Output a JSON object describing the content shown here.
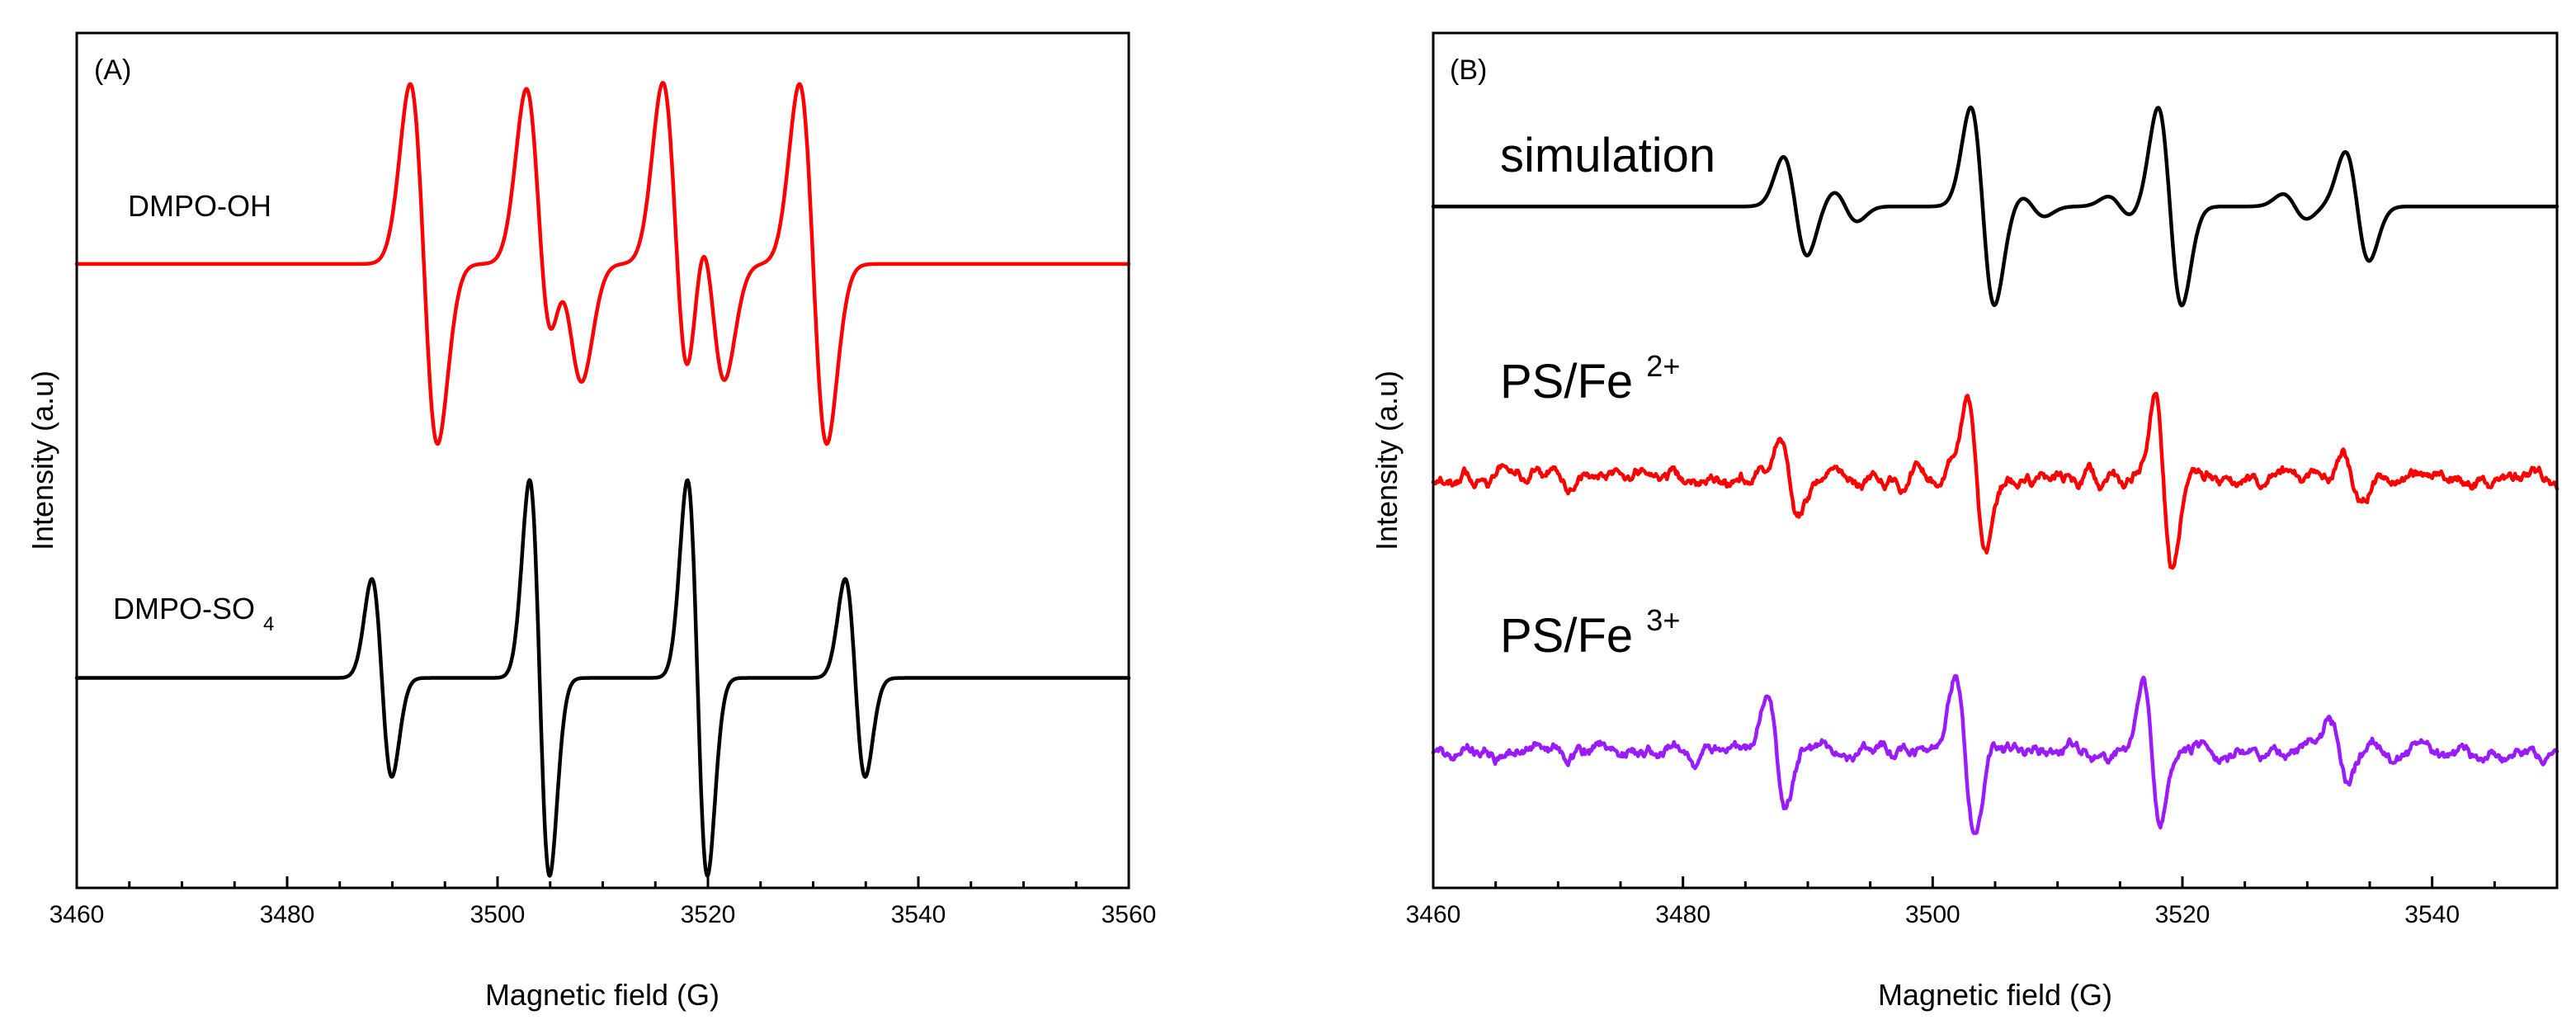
{
  "figure": {
    "colors": {
      "axis": "#000000",
      "red": "#ff0000",
      "black": "#000000",
      "purple": "#9b1bff"
    }
  },
  "chart_data": [
    {
      "type": "line",
      "panel_label": "(A)",
      "xlabel": "Magnetic field (G)",
      "ylabel": "Intensity (a.u)",
      "xlim": [
        3460,
        3560
      ],
      "xticks": [
        3460,
        3480,
        3500,
        3520,
        3540,
        3560
      ],
      "minor_step": 5,
      "ylim": [
        -1.7,
        1.15
      ],
      "grid": false,
      "series": [
        {
          "name": "DMPO-OH",
          "label_main": "DMPO-OH",
          "label_sub": "",
          "color": "#ff0000",
          "baseline": 0.38,
          "width": 1.3,
          "lines": [
            {
              "center": 3493.0,
              "amp": 0.6
            },
            {
              "center": 3504.0,
              "amp": 0.57
            },
            {
              "center": 3506.8,
              "amp": 0.37
            },
            {
              "center": 3517.0,
              "amp": 0.6
            },
            {
              "center": 3520.3,
              "amp": 0.38
            },
            {
              "center": 3530.0,
              "amp": 0.6
            }
          ]
        },
        {
          "name": "DMPO-SO4",
          "label_main": "DMPO-SO",
          "label_sub": "4",
          "color": "#000000",
          "baseline": -1.0,
          "width": 0.95,
          "lines": [
            {
              "center": 3489.0,
              "amp": 0.33
            },
            {
              "center": 3504.0,
              "amp": 0.66
            },
            {
              "center": 3519.0,
              "amp": 0.66
            },
            {
              "center": 3534.0,
              "amp": 0.33
            }
          ]
        }
      ]
    },
    {
      "type": "line",
      "panel_label": "(B)",
      "xlabel": "Magnetic field (G)",
      "ylabel": "Intensity (a.u)",
      "xlim": [
        3460,
        3550
      ],
      "xticks": [
        3460,
        3480,
        3500,
        3520,
        3540
      ],
      "minor_step": 5,
      "ylim": [
        -2.2,
        1.25
      ],
      "grid": false,
      "series": [
        {
          "name": "simulation",
          "label_main": "simulation",
          "label_sup": "",
          "color": "#000000",
          "baseline": 0.55,
          "width": 0.95,
          "noise": 0,
          "lines": [
            {
              "center": 3489.0,
              "amp": 0.2
            },
            {
              "center": 3493.0,
              "amp": 0.06
            },
            {
              "center": 3504.0,
              "amp": 0.4
            },
            {
              "center": 3508.0,
              "amp": 0.04
            },
            {
              "center": 3515.0,
              "amp": 0.04
            },
            {
              "center": 3519.0,
              "amp": 0.4
            },
            {
              "center": 3529.0,
              "amp": 0.05
            },
            {
              "center": 3534.0,
              "amp": 0.22
            }
          ]
        },
        {
          "name": "PS/Fe2+",
          "label_main": "PS/Fe",
          "label_sup": "2+",
          "color": "#ff0000",
          "baseline": -0.55,
          "width": 0.7,
          "noise": 0.055,
          "seed": 7,
          "lines": [
            {
              "center": 3488.5,
              "amp": 0.16
            },
            {
              "center": 3503.5,
              "amp": 0.3
            },
            {
              "center": 3518.5,
              "amp": 0.32
            },
            {
              "center": 3533.5,
              "amp": 0.12
            }
          ]
        },
        {
          "name": "PS/Fe3+",
          "label_main": "PS/Fe",
          "label_sup": "3+",
          "color": "#9b1bff",
          "baseline": -1.65,
          "width": 0.7,
          "noise": 0.055,
          "seed": 19,
          "lines": [
            {
              "center": 3487.5,
              "amp": 0.24
            },
            {
              "center": 3502.6,
              "amp": 0.32
            },
            {
              "center": 3517.5,
              "amp": 0.3
            },
            {
              "center": 3532.5,
              "amp": 0.12
            }
          ]
        }
      ]
    }
  ]
}
